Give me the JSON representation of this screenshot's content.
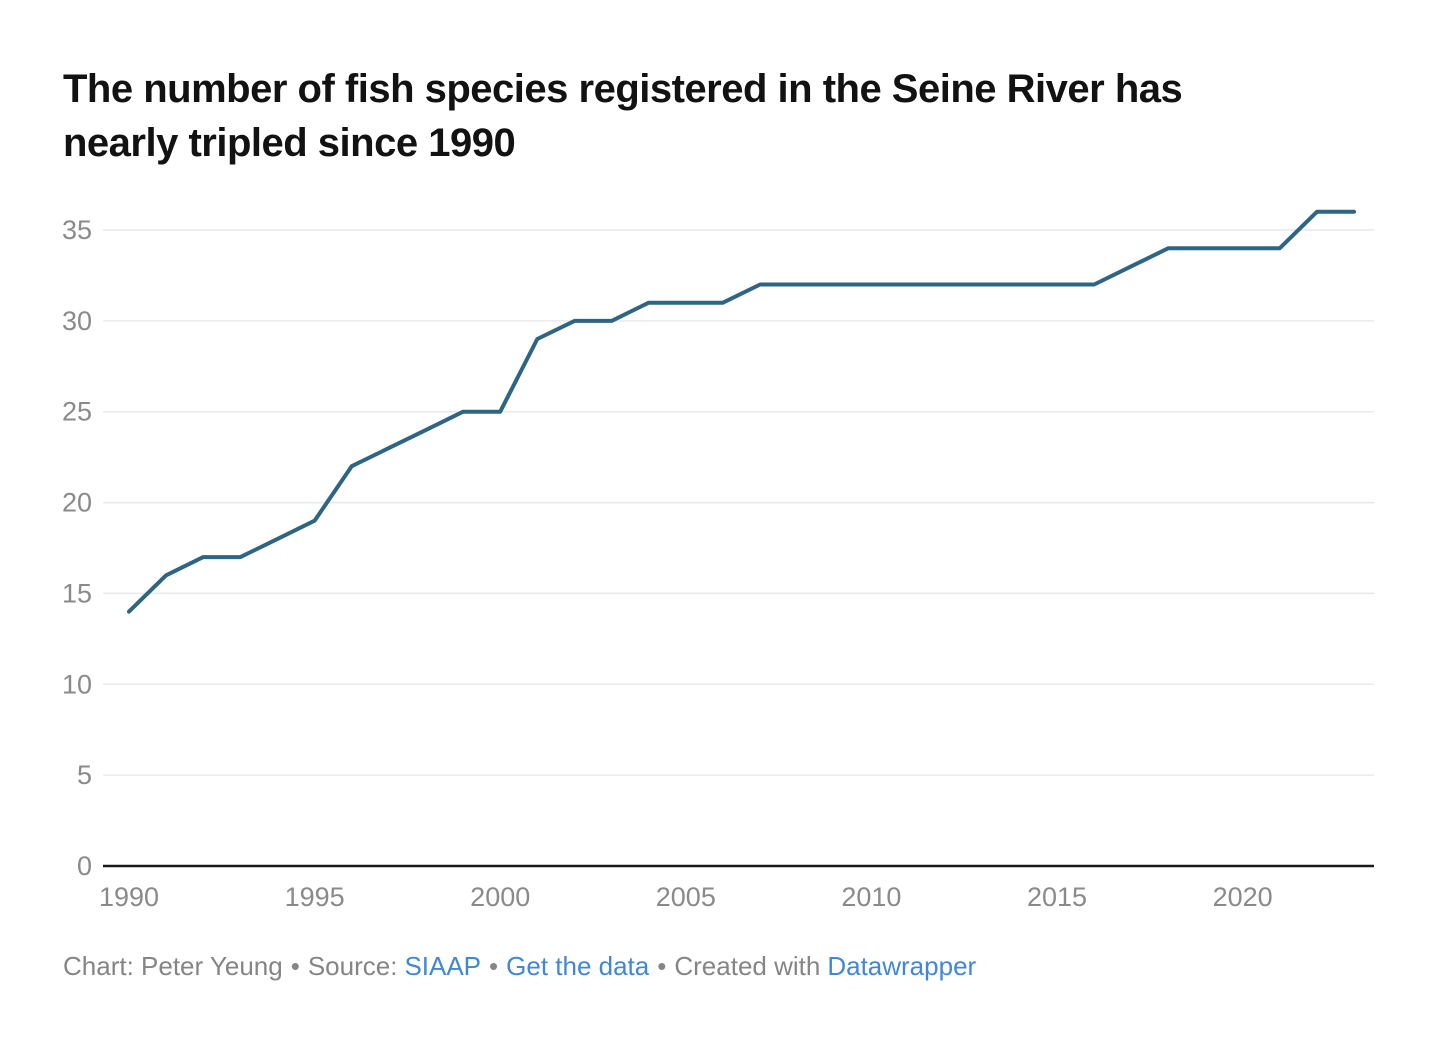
{
  "header": {
    "title_line1": "The number of fish species registered in the Seine River has",
    "title_line2": "nearly tripled since 1990"
  },
  "chart_data": {
    "type": "line",
    "title": "The number of fish species registered in the Seine River has nearly tripled since 1990",
    "x": [
      1990,
      1991,
      1992,
      1993,
      1994,
      1995,
      1996,
      1997,
      1998,
      1999,
      2000,
      2001,
      2002,
      2003,
      2004,
      2005,
      2006,
      2007,
      2008,
      2009,
      2010,
      2011,
      2012,
      2013,
      2014,
      2015,
      2016,
      2017,
      2018,
      2019,
      2020,
      2021,
      2022,
      2023
    ],
    "values": [
      14,
      16,
      17,
      17,
      18,
      19,
      22,
      23,
      24,
      25,
      25,
      29,
      30,
      30,
      31,
      31,
      31,
      32,
      32,
      32,
      32,
      32,
      32,
      32,
      32,
      32,
      32,
      33,
      34,
      34,
      34,
      34,
      36,
      36
    ],
    "xlabel": "",
    "ylabel": "",
    "ylim": [
      0,
      37
    ],
    "y_ticks": [
      0,
      5,
      10,
      15,
      20,
      25,
      30,
      35
    ],
    "x_ticks": [
      1990,
      1995,
      2000,
      2005,
      2010,
      2015,
      2020
    ],
    "grid": "horizontal",
    "legend": "none"
  },
  "colors": {
    "background": "#ffffff",
    "title": "#121212",
    "line": "#2e6484",
    "grid": "#e9e9e9",
    "axis": "#1a1a1a",
    "tick_label": "#8a8a8a",
    "footer_text": "#858585",
    "link": "#4087d7"
  },
  "footer": {
    "credit": "Chart: Peter Yeung",
    "sep": "•",
    "source_label": "Source:",
    "source_link_label": "SIAAP",
    "get_data_label": "Get the data",
    "created_with": "Created with",
    "tool_link_label": "Datawrapper"
  }
}
